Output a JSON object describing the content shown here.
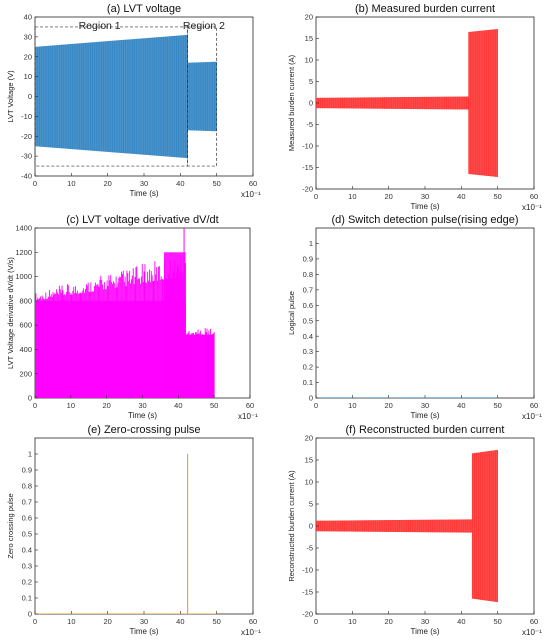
{
  "figure": {
    "exponent_label": "x10⁻¹"
  },
  "chart_data": [
    {
      "id": "a",
      "type": "line",
      "title": "(a) LVT voltage",
      "xlabel": "Time (s)",
      "ylabel": "LVT Voltage (V)",
      "xlim": [
        0,
        60
      ],
      "ylim": [
        -40,
        40
      ],
      "xticks": [
        0,
        10,
        20,
        30,
        40,
        50,
        60
      ],
      "yticks": [
        -40,
        -30,
        -20,
        -10,
        0,
        10,
        20,
        30,
        40
      ],
      "color": "#2a7fc1",
      "annotations": [
        "Region 1",
        "Region 2"
      ],
      "series": [
        {
          "kind": "envelope",
          "x": [
            0,
            42
          ],
          "upper": [
            25,
            31
          ],
          "lower": [
            -25,
            -31
          ]
        },
        {
          "kind": "envelope",
          "x": [
            42,
            50
          ],
          "upper": [
            17,
            17.5
          ],
          "lower": [
            -17,
            -17.5
          ]
        }
      ],
      "regions": [
        {
          "label": "Region 1",
          "x": [
            0,
            42
          ],
          "y": [
            -35,
            35
          ]
        },
        {
          "label": "Region 2",
          "x": [
            42,
            50
          ],
          "y": [
            -35,
            35
          ]
        }
      ]
    },
    {
      "id": "b",
      "type": "line",
      "title": "(b) Measured burden current",
      "xlabel": "Time (s)",
      "ylabel": "Measured burden current (A)",
      "xlim": [
        0,
        60
      ],
      "ylim": [
        -20,
        20
      ],
      "xticks": [
        0,
        10,
        20,
        30,
        40,
        50,
        60
      ],
      "yticks": [
        -20,
        -15,
        -10,
        -5,
        0,
        5,
        10,
        15,
        20
      ],
      "color": "#ff2a2a",
      "series": [
        {
          "kind": "envelope",
          "x": [
            0,
            42
          ],
          "upper": [
            1.2,
            1.5
          ],
          "lower": [
            -1.2,
            -1.5
          ]
        },
        {
          "kind": "envelope",
          "x": [
            42,
            50
          ],
          "upper": [
            16.5,
            17.2
          ],
          "lower": [
            -16.5,
            -17.2
          ]
        }
      ]
    },
    {
      "id": "c",
      "type": "line",
      "title": "(c) LVT voltage derivative dV/dt",
      "xlabel": "Time (s)",
      "ylabel": "LVT Voltage derivative dV/dt (V/s)",
      "xlim": [
        0,
        60
      ],
      "ylim": [
        0,
        1400
      ],
      "xticks": [
        0,
        10,
        20,
        30,
        40,
        50,
        60
      ],
      "yticks": [
        0,
        200,
        400,
        600,
        800,
        1000,
        1200,
        1400
      ],
      "color": "#ff00ff",
      "series": [
        {
          "kind": "band",
          "x": [
            0,
            42
          ],
          "base": [
            800,
            1000
          ],
          "spikes_max": [
            870,
            1200
          ]
        },
        {
          "kind": "band",
          "x": [
            42,
            50
          ],
          "base": [
            520,
            520
          ],
          "spikes_max": [
            580,
            580
          ]
        }
      ]
    },
    {
      "id": "d",
      "type": "line",
      "title": "(d) Switch detection pulse(rising edge)",
      "xlabel": "Time (s)",
      "ylabel": "Logical pulse",
      "xlim": [
        0,
        60
      ],
      "ylim": [
        0,
        1.1
      ],
      "xticks": [
        0,
        10,
        20,
        30,
        40,
        50,
        60
      ],
      "yticks": [
        0,
        0.1,
        0.2,
        0.3,
        0.4,
        0.5,
        0.6,
        0.7,
        0.8,
        0.9,
        1
      ],
      "color": "#2a7fc1",
      "series": [
        {
          "kind": "line",
          "x": [
            0,
            50
          ],
          "y": [
            0,
            0
          ]
        }
      ]
    },
    {
      "id": "e",
      "type": "line",
      "title": "(e) Zero-crossing pulse",
      "xlabel": "Time (s)",
      "ylabel": "Zero crossing pulse",
      "xlim": [
        0,
        60
      ],
      "ylim": [
        0,
        1.1
      ],
      "xticks": [
        0,
        10,
        20,
        30,
        40,
        50,
        60
      ],
      "yticks": [
        0,
        0.1,
        0.2,
        0.3,
        0.4,
        0.5,
        0.6,
        0.7,
        0.8,
        0.9,
        1
      ],
      "color": "#f0a020",
      "series": [
        {
          "kind": "line",
          "x": [
            0,
            42,
            42,
            42,
            50
          ],
          "y": [
            0,
            0,
            1,
            0,
            0
          ]
        }
      ]
    },
    {
      "id": "f",
      "type": "line",
      "title": "(f) Reconstructed burden current",
      "xlabel": "Time (s)",
      "ylabel": "Reconstructed burden current (A)",
      "xlim": [
        0,
        60
      ],
      "ylim": [
        -20,
        20
      ],
      "xticks": [
        0,
        10,
        20,
        30,
        40,
        50,
        60
      ],
      "yticks": [
        -20,
        -15,
        -10,
        -5,
        0,
        5,
        10,
        15,
        20
      ],
      "color": "#ff2a2a",
      "series": [
        {
          "kind": "envelope",
          "x": [
            0,
            43
          ],
          "upper": [
            1.2,
            1.5
          ],
          "lower": [
            -1.2,
            -1.5
          ]
        },
        {
          "kind": "envelope",
          "x": [
            43,
            50
          ],
          "upper": [
            16.5,
            17.3
          ],
          "lower": [
            -16.5,
            -17.3
          ]
        }
      ]
    }
  ]
}
